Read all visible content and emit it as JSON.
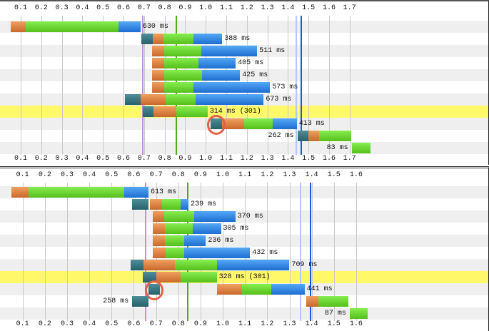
{
  "chart_data": [
    {
      "type": "waterfall",
      "title": "",
      "xlabel": "",
      "ylabel": "",
      "xlim": [
        0,
        1.8
      ],
      "x_ticks": [
        "0.1",
        "0.2",
        "0.3",
        "0.4",
        "0.5",
        "0.6",
        "0.7",
        "0.8",
        "0.9",
        "1.0",
        "1.1",
        "1.2",
        "1.3",
        "1.4",
        "1.5",
        "1.6",
        "1.7"
      ],
      "markers": [
        {
          "name": "start-render",
          "t": 0.691,
          "color": "#c490d8"
        },
        {
          "name": "dom-content-loaded",
          "t": 0.852,
          "color": "#4caf1a"
        },
        {
          "name": "on-load-start",
          "t": 1.437,
          "color": "#b8c4f4"
        },
        {
          "name": "on-load",
          "t": 1.461,
          "color": "#1a55e6"
        }
      ],
      "rows": [
        {
          "label": "630 ms",
          "segments": [
            [
              "orange",
              0.05,
              0.125
            ],
            [
              "green",
              0.125,
              0.577
            ],
            [
              "blue",
              0.577,
              0.683
            ]
          ]
        },
        {
          "label": "388 ms",
          "segments": [
            [
              "teal",
              0.688,
              0.741
            ],
            [
              "orange",
              0.741,
              0.794
            ],
            [
              "green",
              0.794,
              0.942
            ],
            [
              "blue",
              0.942,
              1.08
            ]
          ]
        },
        {
          "label": "511 ms",
          "segments": [
            [
              "orange",
              0.74,
              0.798
            ],
            [
              "green",
              0.798,
              0.977
            ],
            [
              "blue",
              0.977,
              1.25
            ]
          ]
        },
        {
          "label": "405 ms",
          "segments": [
            [
              "orange",
              0.74,
              0.798
            ],
            [
              "green",
              0.798,
              0.966
            ],
            [
              "blue",
              0.966,
              1.146
            ]
          ]
        },
        {
          "label": "425 ms",
          "segments": [
            [
              "orange",
              0.74,
              0.798
            ],
            [
              "green",
              0.798,
              0.982
            ],
            [
              "blue",
              0.982,
              1.167
            ]
          ]
        },
        {
          "label": "573 ms",
          "segments": [
            [
              "orange",
              0.74,
              0.798
            ],
            [
              "green",
              0.798,
              0.94
            ],
            [
              "blue",
              0.94,
              1.313
            ]
          ]
        },
        {
          "label": "673 ms",
          "segments": [
            [
              "teal",
              0.606,
              0.683
            ],
            [
              "orange",
              0.683,
              0.805
            ],
            [
              "green",
              0.805,
              0.951
            ],
            [
              "blue",
              0.951,
              1.282
            ]
          ]
        },
        {
          "label": "314 ms (301)",
          "highlight": true,
          "segments": [
            [
              "teal",
              0.693,
              0.747
            ],
            [
              "orange",
              0.747,
              0.858
            ],
            [
              "green",
              0.858,
              1.009
            ]
          ]
        },
        {
          "label": "413 ms",
          "circled": [
            1.025,
            1.08
          ],
          "segments": [
            [
              "teal",
              1.025,
              1.08
            ],
            [
              "orange",
              1.08,
              1.187
            ],
            [
              "green",
              1.187,
              1.327
            ],
            [
              "blue",
              1.327,
              1.443
            ]
          ]
        },
        {
          "label": "262 ms",
          "label_left": true,
          "segments": [
            [
              "teal",
              1.446,
              1.5
            ],
            [
              "orange",
              1.5,
              1.552
            ],
            [
              "green",
              1.552,
              1.707
            ]
          ]
        },
        {
          "label": "83 ms",
          "label_left": true,
          "segments": [
            [
              "green",
              1.71,
              1.8
            ]
          ]
        }
      ]
    },
    {
      "type": "waterfall",
      "title": "",
      "xlabel": "",
      "ylabel": "",
      "xlim": [
        0,
        1.65
      ],
      "x_ticks": [
        "0.1",
        "0.2",
        "0.3",
        "0.4",
        "0.5",
        "0.6",
        "0.7",
        "0.8",
        "0.9",
        "1.0",
        "1.1",
        "1.2",
        "1.3",
        "1.4",
        "1.5",
        "1.6"
      ],
      "markers": [
        {
          "name": "start-render",
          "t": 0.651,
          "color": "#c490d8"
        },
        {
          "name": "dom-content-loaded",
          "t": 0.838,
          "color": "#4caf1a"
        },
        {
          "name": "on-load-start",
          "t": 1.345,
          "color": "#b8c4f4"
        },
        {
          "name": "on-load",
          "t": 1.392,
          "color": "#1a55e6"
        }
      ],
      "rows": [
        {
          "label": "613 ms",
          "segments": [
            [
              "orange",
              0.051,
              0.127
            ],
            [
              "green",
              0.127,
              0.557
            ],
            [
              "blue",
              0.557,
              0.666
            ]
          ]
        },
        {
          "label": "239 ms",
          "segments": [
            [
              "teal",
              0.593,
              0.666
            ],
            [
              "orange",
              0.671,
              0.727
            ],
            [
              "green",
              0.727,
              0.811
            ],
            [
              "blue",
              0.811,
              0.846
            ]
          ]
        },
        {
          "label": "370 ms",
          "segments": [
            [
              "orange",
              0.684,
              0.738
            ],
            [
              "green",
              0.738,
              0.873
            ],
            [
              "blue",
              0.873,
              1.057
            ]
          ]
        },
        {
          "label": "305 ms",
          "segments": [
            [
              "orange",
              0.684,
              0.741
            ],
            [
              "green",
              0.741,
              0.865
            ],
            [
              "blue",
              0.865,
              0.992
            ]
          ]
        },
        {
          "label": "236 ms",
          "segments": [
            [
              "orange",
              0.686,
              0.741
            ],
            [
              "green",
              0.741,
              0.827
            ],
            [
              "blue",
              0.827,
              0.924
            ]
          ]
        },
        {
          "label": "432 ms",
          "segments": [
            [
              "orange",
              0.686,
              0.743
            ],
            [
              "green",
              0.743,
              0.827
            ],
            [
              "blue",
              0.827,
              1.123
            ]
          ]
        },
        {
          "label": "709 ms",
          "segments": [
            [
              "teal",
              0.586,
              0.643
            ],
            [
              "orange",
              0.643,
              0.785
            ],
            [
              "green",
              0.785,
              0.975
            ],
            [
              "blue",
              0.975,
              1.3
            ]
          ]
        },
        {
          "label": "328 ms (301)",
          "highlight": true,
          "segments": [
            [
              "teal",
              0.64,
              0.701
            ],
            [
              "orange",
              0.701,
              0.811
            ],
            [
              "green",
              0.811,
              0.973
            ]
          ]
        },
        {
          "label": "441 ms",
          "circled": [
            0.666,
            0.716
          ],
          "segments": [
            [
              "teal",
              0.666,
              0.716
            ],
            [
              "orange",
              0.973,
              1.086
            ],
            [
              "green",
              1.086,
              1.218
            ],
            [
              "blue",
              1.218,
              1.368
            ]
          ]
        },
        {
          "label": "258 ms",
          "label_left": true,
          "segments": [
            [
              "teal",
              0.593,
              0.665
            ],
            [
              "orange",
              1.375,
              1.431
            ],
            [
              "green",
              1.431,
              1.566
            ]
          ]
        },
        {
          "label": "87 ms",
          "label_left": true,
          "segments": [
            [
              "green",
              1.571,
              1.65
            ]
          ]
        }
      ]
    }
  ]
}
